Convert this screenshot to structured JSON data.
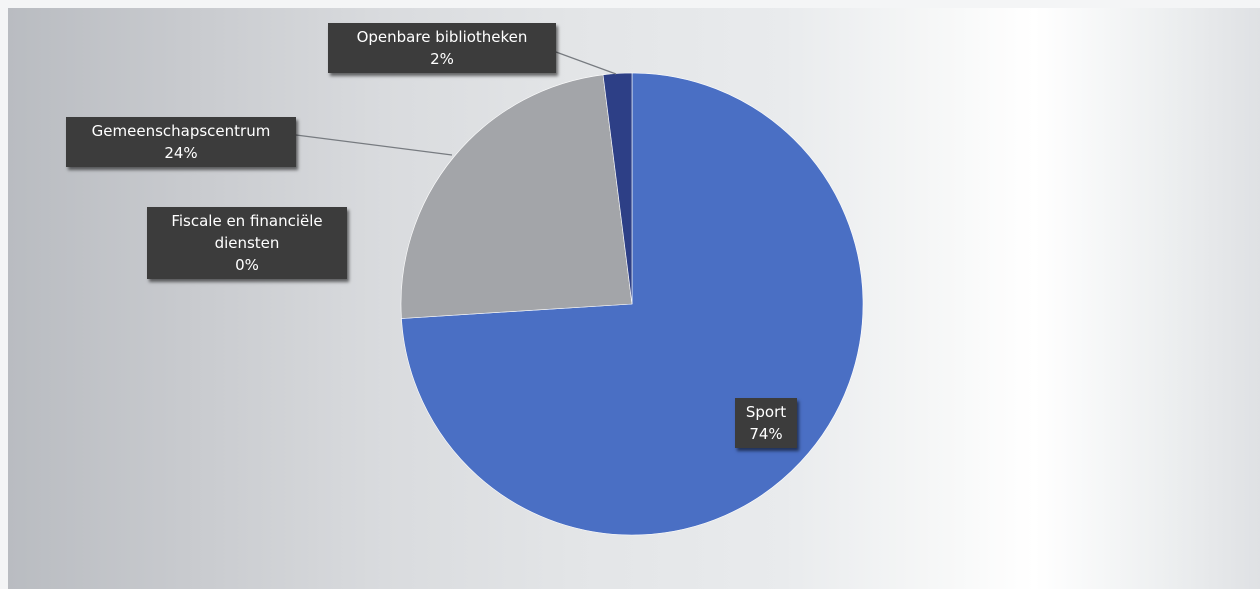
{
  "chart_data": {
    "type": "pie",
    "slices": [
      {
        "name": "Sport",
        "value": 74,
        "value_label": "74%",
        "color": "#4a6fc4"
      },
      {
        "name": "Gemeenschapscentrum",
        "value": 24,
        "value_label": "24%",
        "color": "#a3a5a9"
      },
      {
        "name": "Fiscale en financiële diensten",
        "name_lines": [
          "Fiscale en financiële",
          "diensten"
        ],
        "value": 0,
        "value_label": "0%",
        "color": "#8d8f94"
      },
      {
        "name": "Openbare bibliotheken",
        "value": 2,
        "value_label": "2%",
        "color": "#2d3f86"
      }
    ],
    "start_angle_deg": 0,
    "direction": "clockwise",
    "data_labels": "callout",
    "legend": "none"
  }
}
